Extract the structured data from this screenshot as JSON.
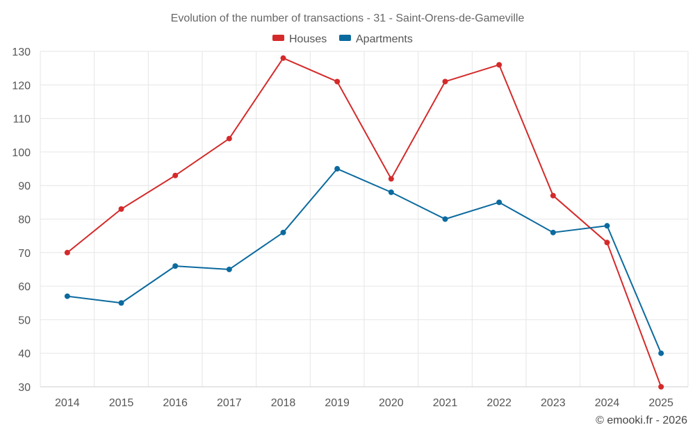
{
  "chart_data": {
    "type": "line",
    "title": "Evolution of the number of transactions - 31 - Saint-Orens-de-Gameville",
    "categories": [
      "2014",
      "2015",
      "2016",
      "2017",
      "2018",
      "2019",
      "2020",
      "2021",
      "2022",
      "2023",
      "2024",
      "2025"
    ],
    "series": [
      {
        "name": "Houses",
        "color": "#d42a2a",
        "values": [
          70,
          83,
          93,
          104,
          128,
          121,
          92,
          121,
          126,
          87,
          73,
          30
        ]
      },
      {
        "name": "Apartments",
        "color": "#0b6a9e",
        "values": [
          57,
          55,
          66,
          65,
          76,
          95,
          88,
          80,
          85,
          76,
          78,
          40
        ]
      }
    ],
    "ylim": [
      30,
      130
    ],
    "yticks": [
      30,
      40,
      50,
      60,
      70,
      80,
      90,
      100,
      110,
      120,
      130
    ],
    "legend": "top-center",
    "grid": true
  },
  "credit": "© emooki.fr - 2026"
}
